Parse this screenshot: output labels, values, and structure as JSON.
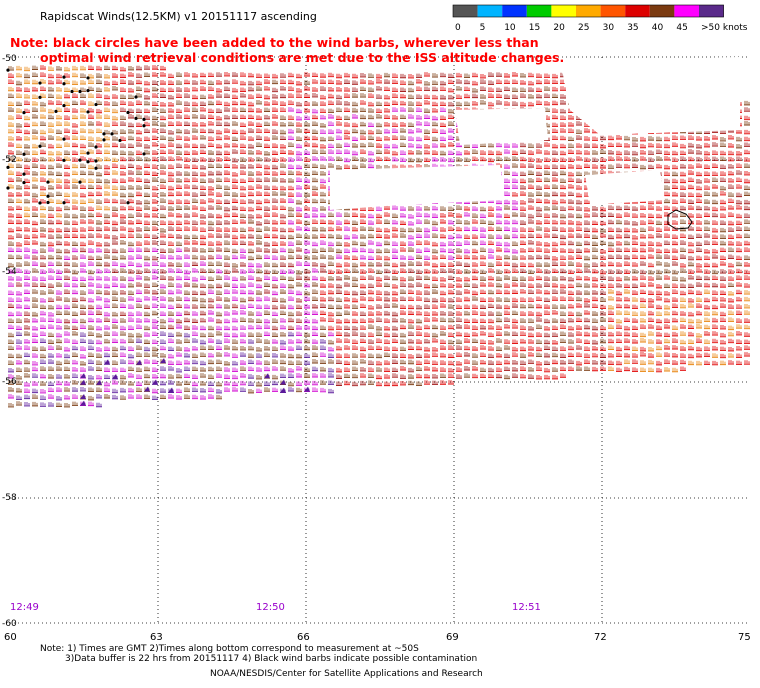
{
  "header": {
    "title": "Rapidscat Winds(12.5KM) v1 20151117 ascending"
  },
  "note": {
    "line1": "Note: black circles have been added to the wind barbs, wherever less than",
    "line2": "optimal wind retrieval conditions are met due to the ISS altitude changes."
  },
  "legend": {
    "ticks": [
      "0",
      "5",
      "10",
      "15",
      "20",
      "25",
      "30",
      "35",
      "40",
      "45",
      ">50 knots"
    ],
    "colors": [
      "#555555",
      "#00b4ff",
      "#0033ff",
      "#00cc00",
      "#ffff00",
      "#ffaa00",
      "#ff5500",
      "#dd0000",
      "#7a3a10",
      "#ff00ff",
      "#5a2a8a"
    ]
  },
  "axes": {
    "lat_labels": [
      "-50",
      "-52",
      "-54",
      "-56",
      "-58",
      "-60"
    ],
    "lon_labels": [
      "60",
      "63",
      "66",
      "69",
      "72",
      "75"
    ]
  },
  "times": [
    "12:49",
    "12:50",
    "12:51"
  ],
  "footer": {
    "line1": "Note: 1) Times are GMT 2)Times along bottom correspond to measurement at ~50S",
    "line2": "3)Data buffer is 22 hrs from 20151117 4) Black wind barbs indicate possible contamination",
    "line3": "NOAA/NESDIS/Center for Satellite Applications and Research"
  },
  "colors": {
    "note_red": "#ff0000",
    "time_purple": "#9900cc"
  }
}
